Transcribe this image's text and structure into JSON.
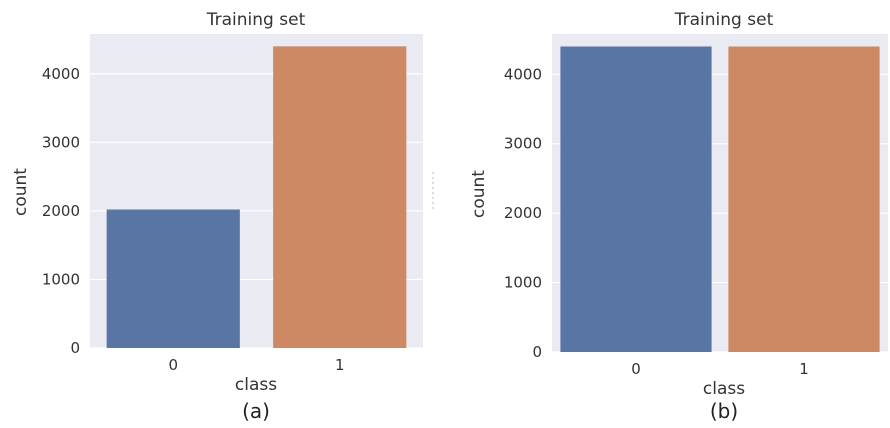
{
  "chart_data": [
    {
      "type": "bar",
      "title": "Training set",
      "xlabel": "class",
      "ylabel": "count",
      "categories": [
        "0",
        "1"
      ],
      "values": [
        2020,
        4400
      ],
      "colors": [
        "#5875a4",
        "#cc8963"
      ],
      "ylim": [
        0,
        4580
      ],
      "yticks": [
        0,
        1000,
        2000,
        3000,
        4000
      ],
      "grid": true,
      "caption": "(a)"
    },
    {
      "type": "bar",
      "title": "Training set",
      "xlabel": "class",
      "ylabel": "count",
      "categories": [
        "0",
        "1"
      ],
      "values": [
        4400,
        4400
      ],
      "colors": [
        "#5875a4",
        "#cc8963"
      ],
      "ylim": [
        0,
        4580
      ],
      "yticks": [
        0,
        1000,
        2000,
        3000,
        4000
      ],
      "grid": true,
      "caption": "(b)"
    }
  ],
  "style": {
    "panel_background": "#eaeaf2",
    "grid_color": "#ffffff",
    "text_color": "#333333"
  }
}
